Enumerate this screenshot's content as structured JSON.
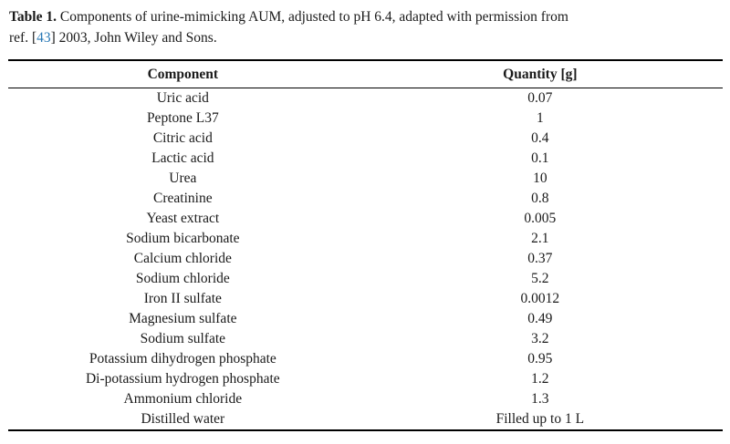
{
  "caption": {
    "label": "Table 1.",
    "line1_rest": " Components of urine-mimicking AUM, adjusted to pH 6.4, adapted with permission from",
    "line2_pre_ref": "ref. [",
    "ref_number": "43",
    "line2_post_ref": "] 2003, John Wiley and Sons."
  },
  "table": {
    "headers": [
      "Component",
      "Quantity [g]"
    ],
    "rows": [
      {
        "component": "Uric acid",
        "quantity": "0.07"
      },
      {
        "component": "Peptone L37",
        "quantity": "1"
      },
      {
        "component": "Citric acid",
        "quantity": "0.4"
      },
      {
        "component": "Lactic acid",
        "quantity": "0.1"
      },
      {
        "component": "Urea",
        "quantity": "10"
      },
      {
        "component": "Creatinine",
        "quantity": "0.8"
      },
      {
        "component": "Yeast extract",
        "quantity": "0.005"
      },
      {
        "component": "Sodium bicarbonate",
        "quantity": "2.1"
      },
      {
        "component": "Calcium chloride",
        "quantity": "0.37"
      },
      {
        "component": "Sodium chloride",
        "quantity": "5.2"
      },
      {
        "component": "Iron II sulfate",
        "quantity": "0.0012"
      },
      {
        "component": "Magnesium sulfate",
        "quantity": "0.49"
      },
      {
        "component": "Sodium sulfate",
        "quantity": "3.2"
      },
      {
        "component": "Potassium dihydrogen phosphate",
        "quantity": "0.95"
      },
      {
        "component": "Di-potassium hydrogen phosphate",
        "quantity": "1.2"
      },
      {
        "component": "Ammonium chloride",
        "quantity": "1.3"
      },
      {
        "component": "Distilled water",
        "quantity": "Filled up to 1 L"
      }
    ]
  },
  "colors": {
    "link_blue": "#2878b5",
    "text": "#1a1a1a",
    "rule": "#000000"
  }
}
